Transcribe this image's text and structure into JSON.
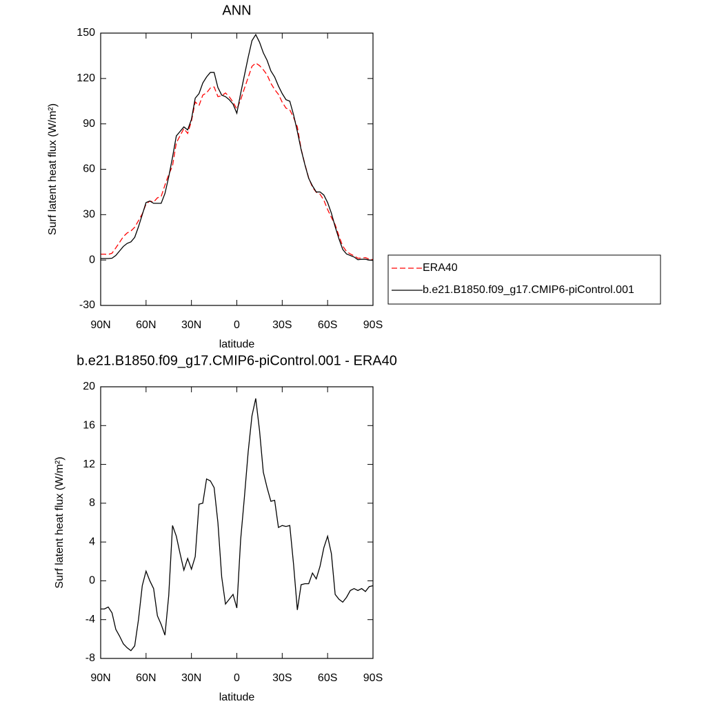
{
  "chart_data": [
    {
      "type": "line",
      "title": "ANN",
      "xlabel": "latitude",
      "ylabel": "Surf latent heat flux (W/m²)",
      "x": [
        90,
        87.5,
        85,
        82.5,
        80,
        77.5,
        75,
        72.5,
        70,
        67.5,
        65,
        62.5,
        60,
        57.5,
        55,
        52.5,
        50,
        47.5,
        45,
        42.5,
        40,
        37.5,
        35,
        32.5,
        30,
        27.5,
        25,
        22.5,
        20,
        17.5,
        15,
        12.5,
        10,
        7.5,
        5,
        2.5,
        0,
        -2.5,
        -5,
        -7.5,
        -10,
        -12.5,
        -15,
        -17.5,
        -20,
        -22.5,
        -25,
        -27.5,
        -30,
        -32.5,
        -35,
        -37.5,
        -40,
        -42.5,
        -45,
        -47.5,
        -50,
        -52.5,
        -55,
        -57.5,
        -60,
        -62.5,
        -65,
        -67.5,
        -70,
        -72.5,
        -75,
        -77.5,
        -80,
        -82.5,
        -85,
        -87.5,
        -90
      ],
      "series": [
        {
          "name": "ERA40",
          "color": "#ff0000",
          "dash": true,
          "values": [
            3.9,
            3.9,
            3.7,
            4.5,
            8.0,
            11.7,
            15.5,
            17.9,
            19.2,
            21.7,
            26.0,
            30.5,
            37.0,
            39.0,
            38.3,
            41.1,
            42.0,
            49.6,
            56.5,
            62.3,
            77.4,
            82.2,
            86.9,
            83.7,
            91.8,
            104.5,
            102.1,
            109.0,
            110.5,
            113.7,
            114.4,
            108.0,
            108.6,
            110.4,
            107.9,
            104.4,
            99.8,
            105.8,
            113.4,
            120.7,
            128.0,
            130.2,
            128.5,
            125.8,
            122.4,
            116.8,
            112.7,
            109.5,
            104.3,
            100.4,
            99.3,
            94.3,
            88.0,
            73.4,
            63.3,
            54.3,
            48.2,
            44.8,
            43.5,
            39.6,
            33.4,
            28.2,
            23.4,
            15.9,
            9.2,
            5.7,
            4.0,
            2.8,
            1.2,
            1.3,
            1.6,
            0.6,
            0.3
          ]
        },
        {
          "name": "b.e21.B1850.f09_g17.CMIP6-piControl.001",
          "color": "#000000",
          "dash": false,
          "values": [
            1.0,
            1.0,
            1.0,
            1.2,
            3,
            6,
            9,
            11,
            12,
            15,
            22,
            30,
            38,
            39,
            37.5,
            37.5,
            37.5,
            44,
            55,
            68,
            82,
            85,
            88,
            86,
            93,
            107,
            110,
            117,
            121,
            124,
            124,
            114,
            109,
            108,
            106,
            103,
            97,
            110,
            122,
            134,
            145,
            149,
            144,
            137,
            132,
            125,
            121,
            115,
            110,
            106,
            105,
            96,
            85,
            73,
            63,
            54,
            49,
            45,
            45,
            43,
            38,
            31,
            22,
            14,
            7,
            4,
            3,
            2,
            0.2,
            0.5,
            0.5,
            0,
            -0.2
          ]
        }
      ],
      "xlim": [
        90,
        -90
      ],
      "ylim": [
        -30,
        150
      ],
      "xticks": [
        {
          "value": 90,
          "label": "90N"
        },
        {
          "value": 60,
          "label": "60N"
        },
        {
          "value": 30,
          "label": "30N"
        },
        0,
        {
          "value": -30,
          "label": "30S"
        },
        {
          "value": -60,
          "label": "60S"
        },
        {
          "value": -90,
          "label": "90S"
        }
      ],
      "yticks": [
        -30,
        0,
        30,
        60,
        90,
        120,
        150
      ],
      "legend": "right"
    },
    {
      "type": "line",
      "title": "b.e21.B1850.f09_g17.CMIP6-piControl.001 - ERA40",
      "xlabel": "latitude",
      "ylabel": "Surf latent heat flux (W/m²)",
      "x": [
        90,
        87.5,
        85,
        82.5,
        80,
        77.5,
        75,
        72.5,
        70,
        67.5,
        65,
        62.5,
        60,
        57.5,
        55,
        52.5,
        50,
        47.5,
        45,
        42.5,
        40,
        37.5,
        35,
        32.5,
        30,
        27.5,
        25,
        22.5,
        20,
        17.5,
        15,
        12.5,
        10,
        7.5,
        5,
        2.5,
        0,
        -2.5,
        -5,
        -7.5,
        -10,
        -12.5,
        -15,
        -17.5,
        -20,
        -22.5,
        -25,
        -27.5,
        -30,
        -32.5,
        -35,
        -37.5,
        -40,
        -42.5,
        -45,
        -47.5,
        -50,
        -52.5,
        -55,
        -57.5,
        -60,
        -62.5,
        -65,
        -67.5,
        -70,
        -72.5,
        -75,
        -77.5,
        -80,
        -82.5,
        -85,
        -87.5,
        -90
      ],
      "series": [
        {
          "color": "#000000",
          "dash": false,
          "values": [
            -2.9,
            -2.9,
            -2.7,
            -3.3,
            -5.0,
            -5.7,
            -6.5,
            -6.9,
            -7.2,
            -6.7,
            -4.0,
            -0.5,
            1.0,
            0,
            -0.8,
            -3.6,
            -4.5,
            -5.6,
            -1.5,
            5.7,
            4.6,
            2.8,
            1.1,
            2.3,
            1.2,
            2.5,
            7.9,
            8.0,
            10.5,
            10.3,
            9.6,
            6.0,
            0.4,
            -2.4,
            -1.9,
            -1.4,
            -2.8,
            4.2,
            8.6,
            13.3,
            17.0,
            18.8,
            15.5,
            11.2,
            9.6,
            8.2,
            8.3,
            5.5,
            5.7,
            5.6,
            5.7,
            1.7,
            -3.0,
            -0.4,
            -0.3,
            -0.3,
            0.8,
            0.2,
            1.5,
            3.4,
            4.6,
            2.8,
            -1.4,
            -1.9,
            -2.2,
            -1.7,
            -1.0,
            -0.8,
            -1.0,
            -0.8,
            -1.1,
            -0.6,
            -0.5
          ]
        }
      ],
      "xlim": [
        90,
        -90
      ],
      "ylim": [
        -8,
        20
      ],
      "xticks": [
        {
          "value": 90,
          "label": "90N"
        },
        {
          "value": 60,
          "label": "60N"
        },
        {
          "value": 30,
          "label": "30N"
        },
        0,
        {
          "value": -30,
          "label": "30S"
        },
        {
          "value": -60,
          "label": "60S"
        },
        {
          "value": -90,
          "label": "90S"
        }
      ],
      "yticks": [
        -8,
        -4,
        0,
        4,
        8,
        12,
        16,
        20
      ]
    }
  ]
}
